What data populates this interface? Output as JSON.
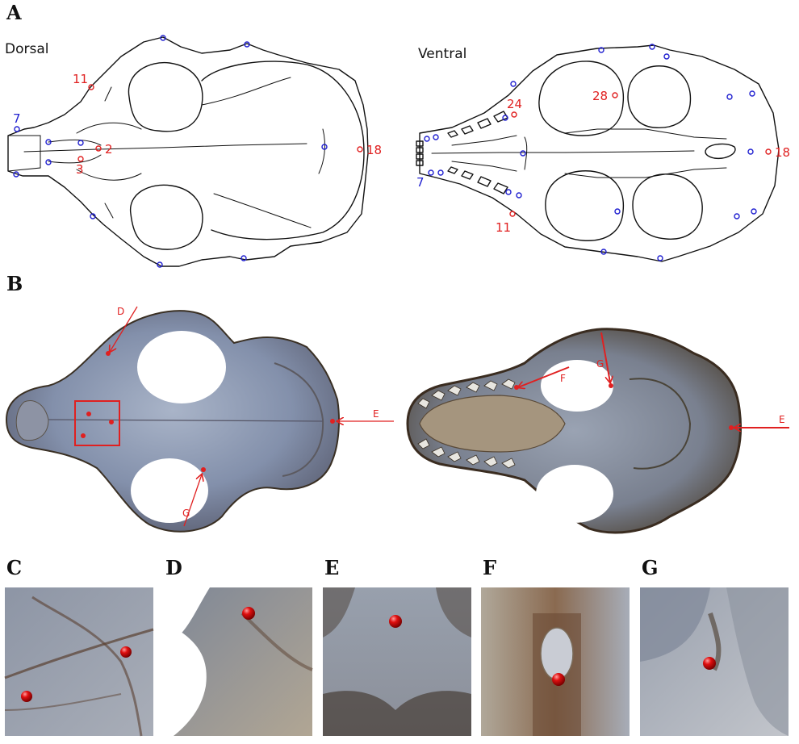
{
  "panels": {
    "A": {
      "letter": "A",
      "dorsal_label": "Dorsal",
      "ventral_label": "Ventral",
      "dorsal_landmarks": [
        {
          "label": "11",
          "color": "red"
        },
        {
          "label": "7",
          "color": "blue"
        },
        {
          "label": "2",
          "color": "red"
        },
        {
          "label": "3",
          "color": "red"
        },
        {
          "label": "18",
          "color": "red"
        }
      ],
      "ventral_landmarks": [
        {
          "label": "24",
          "color": "red"
        },
        {
          "label": "28",
          "color": "red"
        },
        {
          "label": "7",
          "color": "blue"
        },
        {
          "label": "11",
          "color": "red"
        },
        {
          "label": "18",
          "color": "red"
        }
      ]
    },
    "B": {
      "letter": "B",
      "dorsal_arrows": [
        "D",
        "E",
        "G"
      ],
      "ventral_arrows": [
        "F",
        "G",
        "E"
      ]
    },
    "details": [
      {
        "letter": "C"
      },
      {
        "letter": "D"
      },
      {
        "letter": "E"
      },
      {
        "letter": "F"
      },
      {
        "letter": "G"
      }
    ]
  },
  "colors": {
    "landmark_red": "#e02020",
    "landmark_blue": "#2020d0",
    "bone": "#7d8aa6",
    "bone_dark": "#4a3a2c"
  }
}
